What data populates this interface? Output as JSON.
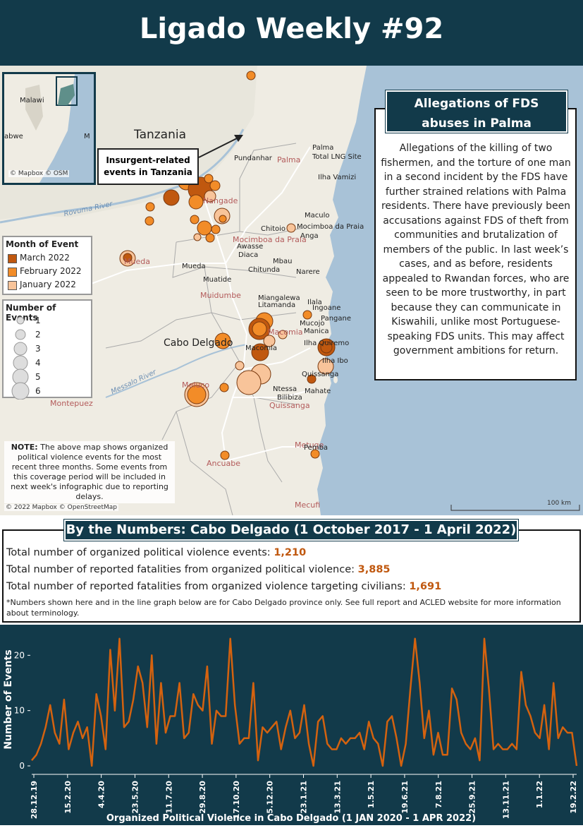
{
  "header": {
    "title": "Ligado Weekly #92"
  },
  "map": {
    "countries": {
      "tanzania": "Tanzania",
      "province": "Cabo Delgado"
    },
    "inset": {
      "labels": [
        "Malawi",
        "abwe",
        "M"
      ],
      "credit": "© Mapbox © OSM"
    },
    "callout": {
      "line1": "Insurgent-related",
      "line2": "events in Tanzania"
    },
    "rivers": [
      "Rovuma River",
      "Messalo River"
    ],
    "places": {
      "palma": "Palma",
      "total_lng": "Total LNG Site",
      "pundanhar": "Pundanhar",
      "palma_region": "Palma",
      "ilha_vamizi": "Ilha Vamizi",
      "nangade": "Nangade",
      "maculo": "Maculo",
      "chitoio": "Chitoio",
      "mocimboa_praia": "Mocimboa da Praia",
      "anga": "Anga",
      "mocimboa_region": "Mocimboa da Praia",
      "awasse": "Awasse",
      "diaca": "Diaca",
      "mbau": "Mbau",
      "mueda": "Mueda",
      "chitunda": "Chitunda",
      "narere": "Narere",
      "mueda_region": "Mueda",
      "muatide": "Muatide",
      "muidumbe": "Muidumbe",
      "miangalewa": "Miangalewa",
      "litamanda": "Litamanda",
      "ilala": "Ilala",
      "ingoane": "Ingoane",
      "pangane": "Pangane",
      "macomia": "Macomia",
      "mucojo": "Mucojo",
      "manica": "Manica",
      "ilha_quirimbas": "Ilha Quiremo",
      "ilha_ibo": "Ilha Ibo",
      "meloco": "Meluco",
      "macomia2": "Macomia",
      "quissanga": "Quissanga",
      "quissanga_region": "Quissanga",
      "ntessa": "Ntessa",
      "mahate": "Mahate",
      "bilibiza": "Bilibiza",
      "montepuez": "Montepuez",
      "metuge": "Metuge",
      "pemba": "Pemba",
      "ancuabe": "Ancuabe",
      "mecufi": "Mecufi",
      "muaguide": "Mueda"
    },
    "legend_month": {
      "title": "Month of Event",
      "items": [
        {
          "label": "March 2022",
          "color": "#c0580f"
        },
        {
          "label": "February 2022",
          "color": "#f28c28"
        },
        {
          "label": "January 2022",
          "color": "#f8c49a"
        }
      ]
    },
    "legend_count": {
      "title": "Number of Events",
      "items": [
        "1",
        "2",
        "3",
        "4",
        "5",
        "6"
      ]
    },
    "note": {
      "label": "NOTE:",
      "text": "The above map shows organized political violence events for the most recent three months. Some events from this coverage period will be included in next week's infographic due to reporting delays."
    },
    "credit": "© 2022 Mapbox © OpenStreetMap",
    "scale": "100 km"
  },
  "sidebar": {
    "title_line1": "Allegations of FDS",
    "title_line2": "abuses in Palma",
    "text": "Allegations of the killing of two fishermen, and the torture of one man in a second incident by the FDS have further strained relations with Palma residents. There have previously been accusations against FDS of theft from communities and brutalization of members of the public. In last week’s cases, and as before, residents appealed to Rwandan forces, who are seen to be more trustworthy, in part because they can communicate in Kiswahili, unlike most Portuguese-speaking FDS units. This may affect government ambitions for return."
  },
  "numbers": {
    "title": "By the Numbers: Cabo Delgado (1 October 2017 - 1 April 2022)",
    "events_label": "Total number of organized political violence events: ",
    "events_value": "1,210",
    "fatalities_label": "Total number of reported fatalities from organized political violence: ",
    "fatalities_value": "3,885",
    "civilians_label": "Total number of reported fatalities from organized violence targeting civilians: ",
    "civilians_value": "1,691",
    "footnote": "*Numbers shown here and in the line graph below are for Cabo Delgado province only. See full report and ACLED website for more information about terminology."
  },
  "colors": {
    "navy": "#123a4a",
    "accent": "#c0580f",
    "line": "#d4620f"
  },
  "chart_data": {
    "type": "line",
    "title": "",
    "xlabel": "Organized Political Violence in Cabo Delgado (1 JAN 2020 - 1 APR 2022)",
    "ylabel": "Number of Events",
    "ylim": [
      0,
      24
    ],
    "yticks": [
      0,
      10,
      20
    ],
    "xticks": [
      "28.12.19",
      "15.2.20",
      "4.4.20",
      "23.5.20",
      "11.7.20",
      "29.8.20",
      "17.10.20",
      "5.12.20",
      "23.1.21",
      "13.3.21",
      "1.5.21",
      "19.6.21",
      "7.8.21",
      "25.9.21",
      "13.11.21",
      "1.1.22",
      "19.2.22"
    ],
    "series": [
      {
        "values": [
          1,
          2,
          4,
          7,
          11,
          6,
          4,
          12,
          3,
          6,
          8,
          5,
          7,
          0,
          13,
          9,
          3,
          21,
          10,
          23,
          7,
          8,
          12,
          18,
          15,
          7,
          20,
          4,
          15,
          6,
          9,
          9,
          15,
          5,
          6,
          13,
          11,
          10,
          18,
          4,
          10,
          9,
          9,
          23,
          11,
          4,
          5,
          5,
          15,
          1,
          7,
          6,
          7,
          8,
          3,
          7,
          10,
          5,
          6,
          11,
          4,
          0,
          8,
          9,
          4,
          3,
          3,
          5,
          4,
          5,
          5,
          6,
          3,
          8,
          5,
          4,
          0,
          8,
          9,
          5,
          0,
          4,
          14,
          23,
          15,
          5,
          10,
          2,
          6,
          2,
          2,
          14,
          12,
          6,
          4,
          3,
          5,
          1,
          23,
          14,
          3,
          4,
          3,
          3,
          4,
          3,
          17,
          11,
          9,
          6,
          5,
          11,
          3,
          15,
          5,
          7,
          6,
          6,
          0
        ]
      }
    ]
  }
}
